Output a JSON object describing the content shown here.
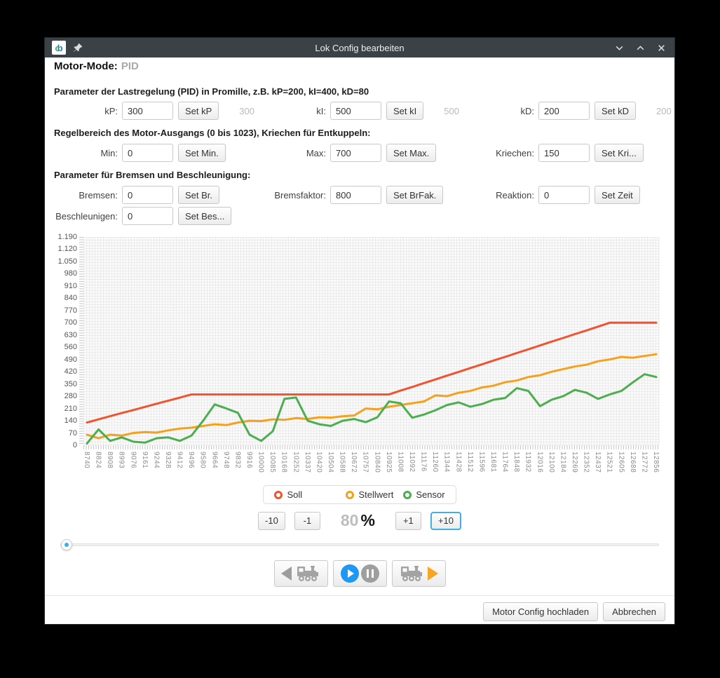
{
  "window": {
    "title": "Lok Config bearbeiten",
    "logo_c": "c",
    "logo_b": "b"
  },
  "header": {
    "label": "Motor-Mode:",
    "value": "PID"
  },
  "sections": {
    "pid_title": "Parameter der Lastregelung (PID) in Promille, z.B. kP=200, kI=400, kD=80",
    "range_title": "Regelbereich des Motor-Ausgangs (0 bis 1023), Kriechen für Entkuppeln:",
    "brake_title": "Parameter für Bremsen und Beschleunigung:"
  },
  "fields": {
    "kp": {
      "label": "kP:",
      "value": "300",
      "button": "Set kP",
      "ghost": "300"
    },
    "ki": {
      "label": "kI:",
      "value": "500",
      "button": "Set kI",
      "ghost": "500"
    },
    "kd": {
      "label": "kD:",
      "value": "200",
      "button": "Set kD",
      "ghost": "200"
    },
    "min": {
      "label": "Min:",
      "value": "0",
      "button": "Set Min."
    },
    "max": {
      "label": "Max:",
      "value": "700",
      "button": "Set Max."
    },
    "kriechen": {
      "label": "Kriechen:",
      "value": "150",
      "button": "Set Kri..."
    },
    "bremsen": {
      "label": "Bremsen:",
      "value": "0",
      "button": "Set Br."
    },
    "bremsfaktor": {
      "label": "Bremsfaktor:",
      "value": "800",
      "button": "Set BrFak."
    },
    "reaktion": {
      "label": "Reaktion:",
      "value": "0",
      "button": "Set Zeit"
    },
    "beschleunigen": {
      "label": "Beschleunigen:",
      "value": "0",
      "button": "Set Bes..."
    }
  },
  "chart_data": {
    "type": "line",
    "title": "",
    "xlabel": "",
    "ylabel": "",
    "ymax": 1190,
    "grid": "fine-dotted",
    "legend_position": "bottom-center",
    "ylabels": [
      "1.190",
      "1.120",
      "1.050",
      "980",
      "910",
      "840",
      "770",
      "700",
      "630",
      "560",
      "490",
      "420",
      "350",
      "280",
      "210",
      "140",
      "70",
      "0"
    ],
    "x": [
      "8740",
      "8824",
      "8908",
      "8993",
      "9076",
      "9161",
      "9244",
      "9328",
      "9412",
      "9496",
      "9580",
      "9664",
      "9748",
      "9832",
      "9916",
      "10000",
      "10085",
      "10168",
      "10252",
      "10337",
      "10420",
      "10504",
      "10588",
      "10672",
      "10757",
      "10840",
      "10925",
      "11008",
      "11092",
      "11176",
      "11260",
      "11344",
      "11428",
      "11512",
      "11596",
      "11681",
      "11764",
      "11848",
      "11932",
      "12016",
      "12100",
      "12184",
      "12269",
      "12352",
      "12437",
      "12521",
      "12605",
      "12688",
      "12772",
      "12856"
    ],
    "series": [
      {
        "name": "Soll",
        "color": "#f0532f",
        "values": [
          130,
          148,
          166,
          184,
          201,
          219,
          237,
          255,
          272,
          290,
          290,
          290,
          290,
          290,
          290,
          290,
          290,
          290,
          290,
          290,
          290,
          290,
          290,
          290,
          290,
          290,
          290,
          312,
          333,
          355,
          376,
          398,
          419,
          441,
          462,
          484,
          505,
          527,
          548,
          570,
          592,
          613,
          635,
          656,
          678,
          700,
          700,
          700,
          700,
          700
        ]
      },
      {
        "name": "Stellwert",
        "color": "#f5a11c",
        "values": [
          60,
          40,
          60,
          55,
          70,
          75,
          72,
          85,
          95,
          100,
          110,
          120,
          115,
          130,
          140,
          138,
          148,
          145,
          155,
          150,
          160,
          158,
          165,
          170,
          210,
          205,
          220,
          230,
          240,
          250,
          285,
          280,
          300,
          310,
          330,
          340,
          360,
          370,
          390,
          400,
          420,
          435,
          450,
          460,
          480,
          490,
          505,
          500,
          510,
          520
        ]
      },
      {
        "name": "Sensor",
        "color": "#4cae4f",
        "values": [
          10,
          90,
          25,
          45,
          20,
          15,
          40,
          45,
          25,
          55,
          140,
          233,
          210,
          185,
          60,
          25,
          80,
          265,
          273,
          140,
          120,
          110,
          140,
          150,
          132,
          160,
          250,
          240,
          157,
          175,
          200,
          230,
          245,
          220,
          235,
          260,
          270,
          326,
          310,
          223,
          260,
          280,
          316,
          300,
          265,
          290,
          310,
          360,
          406,
          390
        ]
      }
    ]
  },
  "speed": {
    "minus10": "-10",
    "minus1": "-1",
    "value": "80",
    "unit": "%",
    "plus1": "+1",
    "plus10": "+10"
  },
  "footer": {
    "upload": "Motor Config hochladen",
    "cancel": "Abbrechen"
  },
  "icons": {
    "app_logo": "cb-logo",
    "pin": "pin-icon",
    "minimize": "chevron-down-icon",
    "maximize": "chevron-up-icon",
    "close": "x-icon",
    "backward": "triangle-left-icon",
    "forward": "triangle-right-icon",
    "locomotive": "locomotive-icon",
    "play": "play-circle-icon",
    "pause": "pause-circle-icon"
  },
  "colors": {
    "titlebar": "#3a4147",
    "accent_blue": "#1d99f3",
    "slider_dot": "#35b2e5",
    "focus_ring": "#45aede"
  }
}
